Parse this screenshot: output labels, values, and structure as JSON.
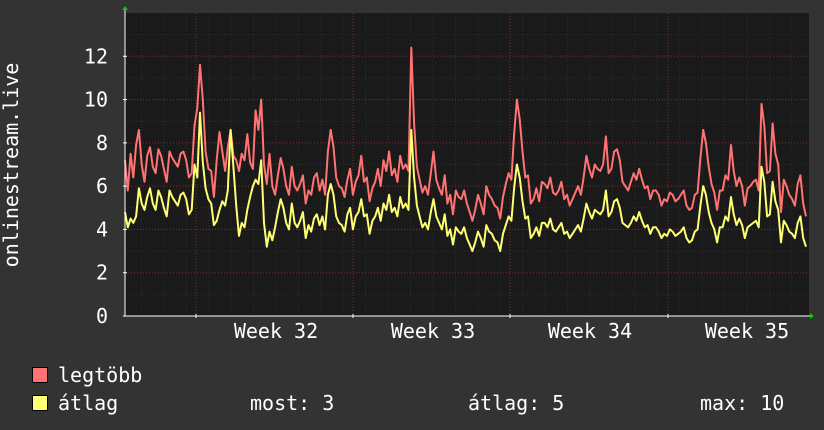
{
  "chart_data": {
    "type": "line",
    "ylabel": "onlinestream.live",
    "ylim": [
      0,
      14
    ],
    "yticks": [
      0,
      2,
      4,
      6,
      8,
      10,
      12
    ],
    "x_tick_labels": [
      "Week 32",
      "Week 33",
      "Week 34",
      "Week 35"
    ],
    "grid": true,
    "series": [
      {
        "name": "legtöbb",
        "color": "#ff7373",
        "values": [
          7.2,
          5.8,
          7.5,
          6.4,
          7.9,
          8.6,
          7.0,
          6.2,
          7.4,
          7.8,
          6.9,
          6.6,
          7.7,
          7.4,
          6.8,
          6.2,
          7.6,
          7.3,
          7.1,
          6.9,
          7.5,
          7.6,
          7.2,
          6.4,
          6.6,
          8.8,
          9.6,
          11.6,
          10.0,
          7.6,
          6.8,
          6.7,
          5.5,
          7.2,
          8.5,
          7.6,
          6.7,
          7.8,
          8.6,
          7.4,
          7.2,
          6.7,
          7.5,
          7.2,
          8.4,
          7.1,
          6.8,
          9.5,
          8.6,
          10.0,
          7.0,
          6.1,
          7.5,
          6.0,
          5.6,
          6.5,
          7.3,
          6.8,
          6.0,
          5.6,
          6.9,
          6.0,
          5.8,
          6.1,
          6.5,
          5.2,
          5.8,
          5.6,
          6.4,
          6.6,
          5.8,
          6.3,
          5.6,
          7.6,
          8.6,
          7.8,
          6.4,
          6.0,
          5.9,
          5.5,
          6.3,
          6.8,
          5.6,
          6.2,
          6.5,
          7.4,
          6.2,
          6.4,
          5.3,
          5.9,
          6.2,
          6.8,
          6.0,
          7.2,
          6.7,
          7.6,
          6.5,
          6.8,
          6.2,
          7.4,
          6.8,
          7.0,
          6.7,
          12.4,
          8.9,
          6.9,
          6.3,
          5.7,
          6.0,
          5.6,
          6.6,
          7.6,
          6.3,
          5.9,
          5.6,
          6.5,
          5.2,
          5.6,
          4.7,
          5.8,
          5.5,
          5.4,
          5.8,
          5.2,
          4.8,
          4.4,
          4.9,
          5.6,
          5.2,
          4.7,
          6.0,
          5.6,
          5.4,
          5.1,
          5.0,
          4.5,
          5.5,
          6.1,
          6.6,
          6.3,
          8.4,
          10.0,
          9.1,
          7.6,
          6.4,
          6.5,
          5.2,
          5.4,
          5.9,
          5.3,
          6.2,
          6.1,
          5.9,
          6.4,
          5.7,
          5.6,
          5.8,
          6.2,
          5.4,
          5.6,
          5.1,
          5.4,
          5.7,
          6.0,
          5.6,
          6.4,
          7.4,
          6.8,
          6.4,
          7.0,
          6.8,
          6.7,
          7.0,
          8.3,
          6.6,
          6.8,
          7.6,
          7.7,
          7.2,
          6.2,
          6.0,
          5.8,
          6.2,
          6.6,
          6.3,
          6.8,
          6.3,
          5.9,
          6.0,
          5.4,
          5.8,
          5.8,
          5.6,
          5.1,
          5.4,
          5.3,
          5.7,
          5.6,
          5.3,
          5.4,
          5.6,
          5.8,
          5.1,
          4.9,
          5.0,
          5.6,
          5.7,
          7.3,
          8.6,
          8.0,
          6.9,
          6.1,
          5.7,
          4.9,
          5.8,
          5.8,
          6.5,
          6.3,
          7.9,
          6.7,
          6.0,
          6.4,
          6.0,
          5.1,
          5.9,
          6.0,
          6.2,
          6.3,
          5.8,
          9.8,
          8.8,
          6.6,
          6.7,
          8.9,
          7.5,
          7.0,
          4.8,
          6.3,
          6.0,
          5.6,
          5.4,
          5.1,
          6.1,
          6.5,
          5.2,
          4.6
        ]
      },
      {
        "name": "átlag",
        "color": "#ffff73",
        "values": [
          4.8,
          4.1,
          4.5,
          4.3,
          4.6,
          5.9,
          5.2,
          4.9,
          5.5,
          5.9,
          5.2,
          4.9,
          5.8,
          5.5,
          5.0,
          4.6,
          5.8,
          5.5,
          5.3,
          5.1,
          5.6,
          5.7,
          5.4,
          4.7,
          4.9,
          7.0,
          6.4,
          9.4,
          7.1,
          5.9,
          5.4,
          5.2,
          4.2,
          4.4,
          4.9,
          5.3,
          5.1,
          5.8,
          8.6,
          6.9,
          5.1,
          3.7,
          4.3,
          4.1,
          4.9,
          5.5,
          6.0,
          6.3,
          6.1,
          7.2,
          4.3,
          3.2,
          3.9,
          3.5,
          4.1,
          4.8,
          5.4,
          5.0,
          4.3,
          4.0,
          5.2,
          4.3,
          4.1,
          4.4,
          4.8,
          3.6,
          4.2,
          3.9,
          4.5,
          4.7,
          4.2,
          4.6,
          4.0,
          5.6,
          6.1,
          5.6,
          4.6,
          4.3,
          4.2,
          3.9,
          4.7,
          5.0,
          4.0,
          4.6,
          4.8,
          5.4,
          4.6,
          4.7,
          3.8,
          4.4,
          4.6,
          5.0,
          4.4,
          5.2,
          4.9,
          5.6,
          4.8,
          5.0,
          4.6,
          5.5,
          5.0,
          5.2,
          4.9,
          8.6,
          6.4,
          5.1,
          4.6,
          4.1,
          4.3,
          4.0,
          4.8,
          5.4,
          4.6,
          4.3,
          4.0,
          4.7,
          3.7,
          4.0,
          3.3,
          4.1,
          3.9,
          3.8,
          4.1,
          3.6,
          3.3,
          3.0,
          3.4,
          3.9,
          3.6,
          3.2,
          4.2,
          3.9,
          3.8,
          3.5,
          3.4,
          3.0,
          3.8,
          4.2,
          4.6,
          4.4,
          5.9,
          7.0,
          6.4,
          5.3,
          4.5,
          4.6,
          3.6,
          3.8,
          4.1,
          3.7,
          4.3,
          4.3,
          4.1,
          4.5,
          4.0,
          3.9,
          4.1,
          4.3,
          3.8,
          3.9,
          3.6,
          3.8,
          4.0,
          4.2,
          3.9,
          4.5,
          5.2,
          4.8,
          4.5,
          4.9,
          4.8,
          4.7,
          4.9,
          5.8,
          4.6,
          4.8,
          5.3,
          5.4,
          5.0,
          4.3,
          4.2,
          4.1,
          4.3,
          4.6,
          4.4,
          4.8,
          4.4,
          4.1,
          4.2,
          3.8,
          4.1,
          4.1,
          3.9,
          3.6,
          3.8,
          3.7,
          4.0,
          3.9,
          3.7,
          3.8,
          3.9,
          4.1,
          3.6,
          3.4,
          3.5,
          3.9,
          4.0,
          5.1,
          6.0,
          5.6,
          4.8,
          4.3,
          4.0,
          3.4,
          4.1,
          4.1,
          4.6,
          4.4,
          5.5,
          4.7,
          4.2,
          4.5,
          4.2,
          3.6,
          4.1,
          4.2,
          4.3,
          4.4,
          4.1,
          6.9,
          6.2,
          4.6,
          4.7,
          6.2,
          5.3,
          4.9,
          3.4,
          4.4,
          4.2,
          3.9,
          3.8,
          3.6,
          4.3,
          4.6,
          3.6,
          3.2
        ]
      }
    ]
  },
  "legend": {
    "items": [
      {
        "label": "legtöbb",
        "color": "#ff7373"
      },
      {
        "label": "átlag",
        "color": "#ffff73"
      }
    ],
    "stats": {
      "now": "most: 3",
      "avg": "átlag: 5",
      "max": "max: 10"
    }
  },
  "colors": {
    "background": "#333333",
    "canvas": "#1a1a1a",
    "grid_minor": "#2e2e2e",
    "grid_major": "#7a2c2c",
    "axis": "#ffffff",
    "arrow": "#00cc00"
  }
}
